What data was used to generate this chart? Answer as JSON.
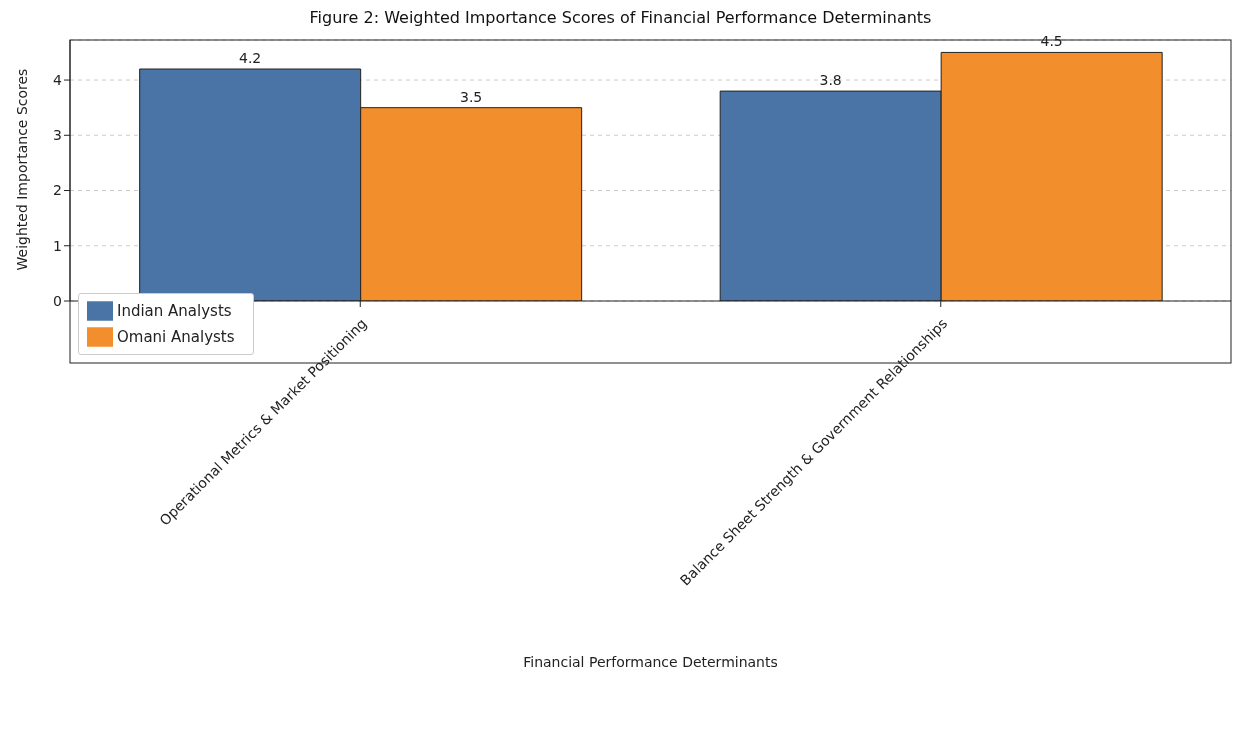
{
  "chart_data": {
    "type": "bar",
    "title": "Figure 2: Weighted Importance Scores of Financial Performance Determinants",
    "xlabel": "Financial Performance Determinants",
    "ylabel": "Weighted Importance Scores",
    "categories": [
      "Operational Metrics & Market Positioning",
      "Balance Sheet Strength & Government Relationships"
    ],
    "series": [
      {
        "name": "Indian Analysts",
        "color": "#4a74a6",
        "values": [
          4.2,
          3.8
        ]
      },
      {
        "name": "Omani Analysts",
        "color": "#f28e2b",
        "values": [
          3.5,
          4.5
        ]
      }
    ],
    "ylim": [
      0,
      4.725
    ],
    "yticks": [
      0,
      1,
      2,
      3,
      4
    ],
    "grid": "y",
    "legend": "bottom left",
    "data_labels": true
  }
}
